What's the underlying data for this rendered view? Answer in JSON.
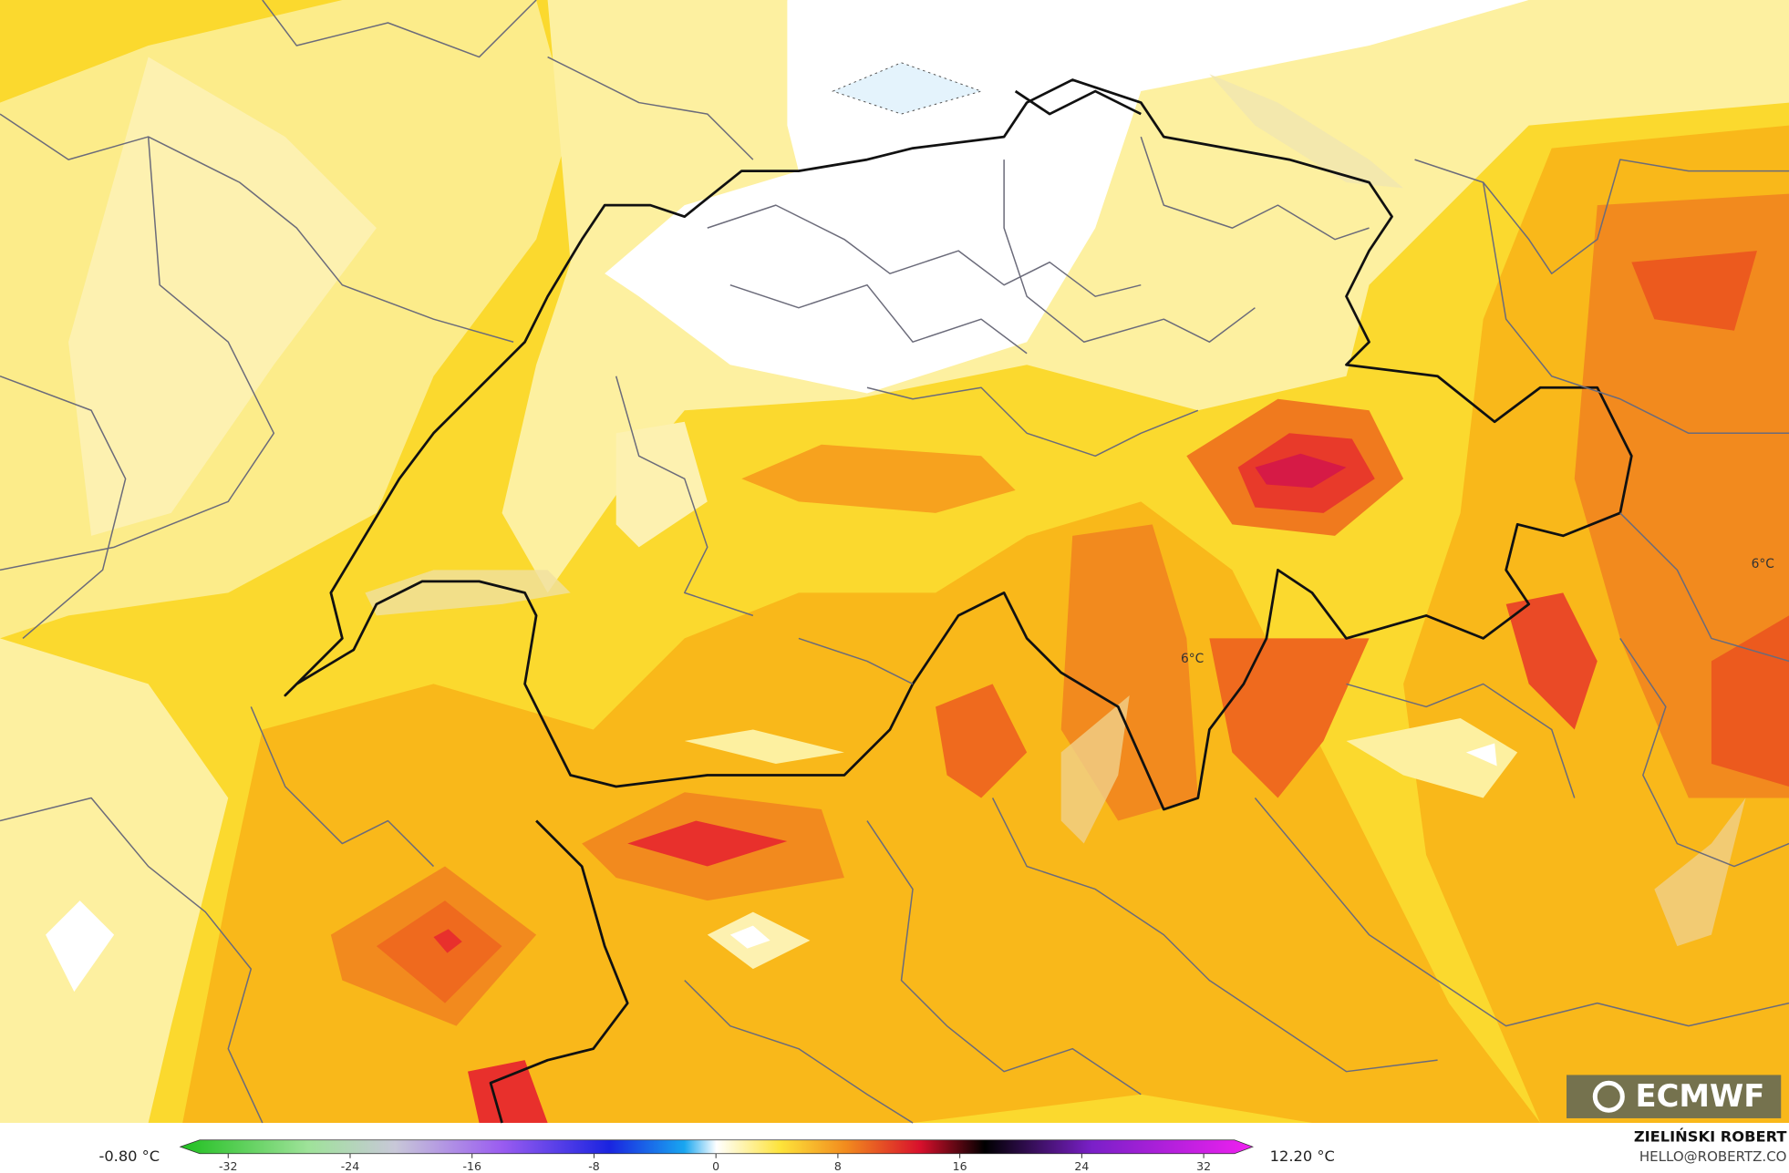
{
  "map": {
    "contour_labels": [
      "6°C",
      "6°C"
    ],
    "logo": "ECMWF"
  },
  "colorbar": {
    "min_label": "-0.80 °C",
    "max_label": "12.20 °C",
    "ticks": [
      -32,
      -24,
      -16,
      -8,
      0,
      8,
      16,
      24,
      32
    ]
  },
  "credit": {
    "author": "ZIELIŃSKI ROBERT",
    "email": "HELLO@ROBERTZ.CO"
  }
}
